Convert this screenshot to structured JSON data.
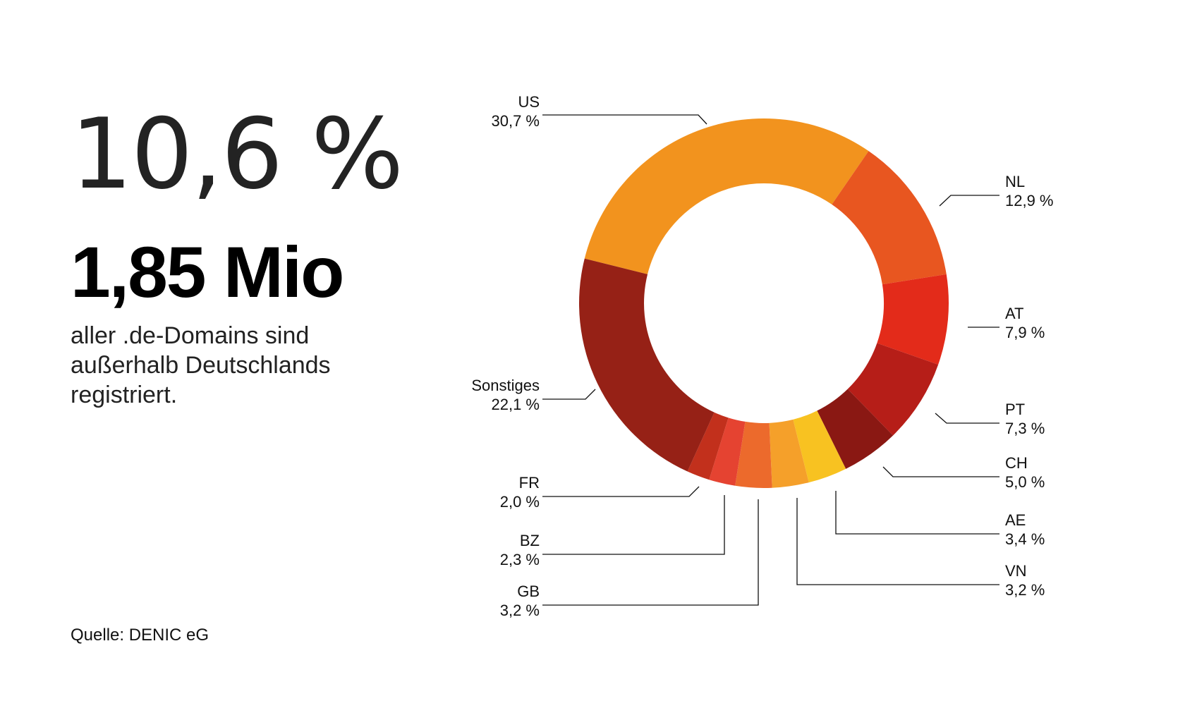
{
  "headline": {
    "percent": "10,6 %",
    "count": "1,85 Mio",
    "description_lines": [
      "aller .de-Domains sind",
      "außerhalb Deutschlands",
      "registriert."
    ]
  },
  "source": "Quelle: DENIC eG",
  "chart_data": {
    "type": "pie",
    "style": "donut",
    "start_angle_deg": -76,
    "direction": "clockwise",
    "slices": [
      {
        "label": "US",
        "value": 30.7,
        "display": "30,7 %",
        "color": "#F2931E"
      },
      {
        "label": "NL",
        "value": 12.9,
        "display": "12,9 %",
        "color": "#E85620"
      },
      {
        "label": "AT",
        "value": 7.9,
        "display": "7,9 %",
        "color": "#E32B1A"
      },
      {
        "label": "PT",
        "value": 7.3,
        "display": "7,3 %",
        "color": "#B61E18"
      },
      {
        "label": "CH",
        "value": 5.0,
        "display": "5,0 %",
        "color": "#8A1813"
      },
      {
        "label": "AE",
        "value": 3.4,
        "display": "3,4 %",
        "color": "#F8C221"
      },
      {
        "label": "VN",
        "value": 3.2,
        "display": "3,2 %",
        "color": "#F5A02A"
      },
      {
        "label": "GB",
        "value": 3.2,
        "display": "3,2 %",
        "color": "#EC6A2C"
      },
      {
        "label": "BZ",
        "value": 2.3,
        "display": "2,3 %",
        "color": "#E54331"
      },
      {
        "label": "FR",
        "value": 2.0,
        "display": "2,0 %",
        "color": "#C2301C"
      },
      {
        "label": "Sonstiges",
        "value": 22.1,
        "display": "22,1 %",
        "color": "#962116"
      }
    ]
  }
}
